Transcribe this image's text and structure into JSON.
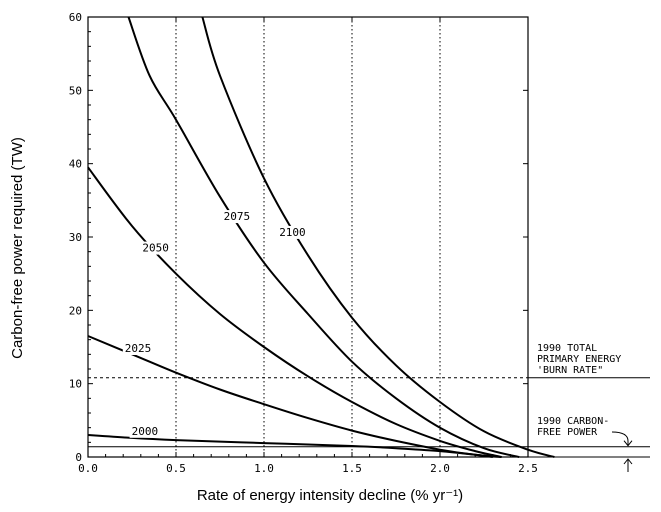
{
  "chart_data": {
    "type": "line",
    "xlabel": "Rate of energy intensity decline (% yr⁻¹)",
    "ylabel": "Carbon-free power required (TW)",
    "xlim": [
      0,
      2.5
    ],
    "ylim": [
      0,
      60
    ],
    "x_ticks": [
      "0.0",
      "0.5",
      "1.0",
      "1.5",
      "2.0",
      "2.5"
    ],
    "y_ticks": [
      "0",
      "10",
      "20",
      "30",
      "40",
      "50",
      "60"
    ],
    "vertical_gridlines": [
      0.5,
      1.0,
      1.5,
      2.0
    ],
    "grid": "dotted vertical lines at 0.5, 1.0, 1.5, 2.0",
    "series": [
      {
        "name": "2000",
        "x": [
          0.0,
          0.25,
          0.5,
          0.75,
          1.0,
          1.25,
          1.5,
          1.75,
          2.0,
          2.2,
          2.3
        ],
        "values": [
          3.0,
          2.6,
          2.3,
          2.1,
          1.9,
          1.7,
          1.5,
          1.2,
          0.8,
          0.3,
          0.0
        ]
      },
      {
        "name": "2025",
        "x": [
          0.0,
          0.25,
          0.5,
          0.75,
          1.0,
          1.25,
          1.5,
          1.75,
          2.0,
          2.2,
          2.35
        ],
        "values": [
          16.5,
          14.0,
          11.5,
          9.2,
          7.2,
          5.3,
          3.6,
          2.2,
          1.0,
          0.3,
          0.0
        ]
      },
      {
        "name": "2050",
        "x": [
          0.0,
          0.25,
          0.5,
          0.75,
          1.0,
          1.25,
          1.5,
          1.75,
          2.0,
          2.2,
          2.35
        ],
        "values": [
          39.5,
          31.5,
          25.0,
          19.5,
          15.0,
          11.0,
          7.5,
          4.5,
          2.2,
          0.8,
          0.0
        ]
      },
      {
        "name": "2075",
        "x": [
          0.23,
          0.35,
          0.5,
          0.75,
          1.0,
          1.25,
          1.5,
          1.75,
          2.0,
          2.25,
          2.45
        ],
        "values": [
          60.0,
          52.0,
          46.0,
          35.5,
          26.5,
          19.5,
          13.0,
          8.0,
          4.0,
          1.2,
          0.0
        ]
      },
      {
        "name": "2100",
        "x": [
          0.65,
          0.75,
          1.0,
          1.25,
          1.5,
          1.75,
          2.0,
          2.25,
          2.5,
          2.65
        ],
        "values": [
          60.0,
          52.0,
          38.0,
          27.5,
          19.0,
          12.5,
          7.5,
          3.5,
          1.0,
          0.0
        ]
      }
    ],
    "reference_lines": [
      {
        "y": 10.8,
        "style": "dashed",
        "label": "1990 TOTAL PRIMARY ENERGY 'BURN RATE'"
      },
      {
        "y": 1.4,
        "style": "solid",
        "label": "1990 CARBON-FREE POWER"
      }
    ]
  },
  "annotations": {
    "burn_rate_line1": "1990 TOTAL",
    "burn_rate_line2": "PRIMARY ENERGY",
    "burn_rate_line3": "'BURN RATE\"",
    "carbon_free_line1": "1990 CARBON-",
    "carbon_free_line2": "FREE POWER"
  },
  "colors": {
    "line": "#000000",
    "background": "#ffffff"
  }
}
